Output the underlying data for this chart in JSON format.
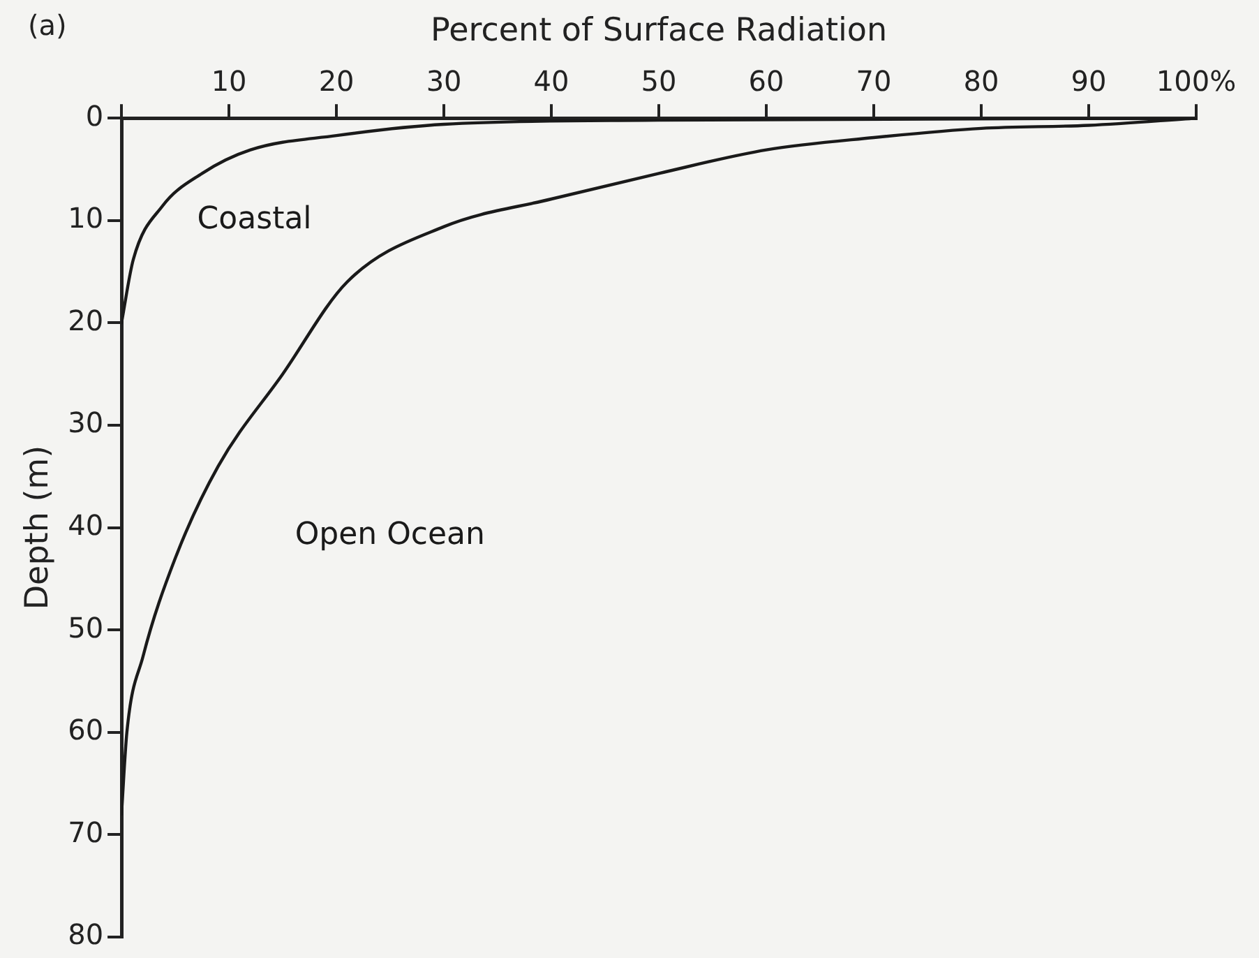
{
  "chart_data": {
    "type": "line",
    "xlabel": "Percent of Surface Radiation",
    "ylabel": "Depth (m)",
    "annotations": [
      "(a)"
    ],
    "xlim": [
      0,
      100
    ],
    "xticks": [
      {
        "value": 0,
        "label": null
      },
      10,
      20,
      30,
      40,
      50,
      60,
      70,
      80,
      90,
      {
        "value": 100,
        "label": "100%"
      }
    ],
    "ylim": [
      80,
      0
    ],
    "yticks": [
      0,
      10,
      20,
      30,
      40,
      50,
      60,
      70,
      80
    ],
    "grid": false,
    "legend": false,
    "marker": "none",
    "line_style": "solid",
    "series": [
      {
        "name": "Coastal",
        "color": "#1a1a1a",
        "x": [
          100,
          50,
          30,
          20,
          12,
          7.5,
          3.8,
          1.1,
          0
        ],
        "values": [
          0,
          0.2,
          0.6,
          1.7,
          3.1,
          5.4,
          8.6,
          13.8,
          20
        ]
      },
      {
        "name": "Open Ocean",
        "color": "#1a1a1a",
        "x": [
          100,
          90,
          80,
          70,
          60,
          50,
          40,
          30,
          21,
          15,
          9,
          5,
          2,
          0.5,
          0
        ],
        "values": [
          0,
          0.7,
          1,
          1.9,
          3.1,
          5.4,
          7.9,
          10.6,
          16,
          25,
          34,
          43,
          52.6,
          60,
          68
        ]
      }
    ]
  }
}
